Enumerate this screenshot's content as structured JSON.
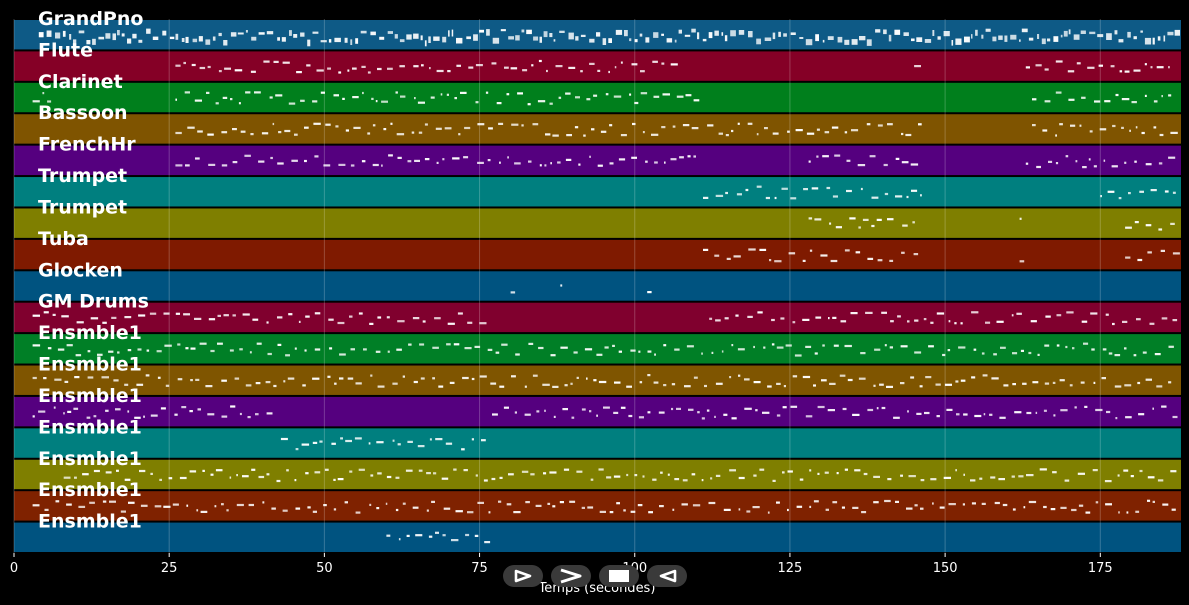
{
  "chart_data": {
    "type": "piano-roll",
    "xlabel": "Temps (secondes)",
    "xlim": [
      0,
      188
    ],
    "xticks": [
      0,
      25,
      50,
      75,
      100,
      125,
      150,
      175
    ],
    "grid": true,
    "tracks": [
      {
        "name": "GrandPno",
        "color": "#0e5a86",
        "active": [
          [
            4,
            187
          ]
        ]
      },
      {
        "name": "Flute",
        "color": "#850026",
        "active": [
          [
            26,
            79
          ],
          [
            80,
            106
          ],
          [
            145,
            146
          ],
          [
            163,
            187
          ]
        ]
      },
      {
        "name": "Clarinet",
        "color": "#007f1c",
        "active": [
          [
            3,
            6
          ],
          [
            26,
            110
          ],
          [
            164,
            187
          ]
        ]
      },
      {
        "name": "Bassoon",
        "color": "#7f5400",
        "active": [
          [
            26,
            146
          ],
          [
            164,
            187
          ]
        ]
      },
      {
        "name": "FrenchHr",
        "color": "#55007f",
        "active": [
          [
            26,
            110
          ],
          [
            128,
            146
          ],
          [
            163,
            187
          ]
        ]
      },
      {
        "name": "Trumpet",
        "color": "#007f7f",
        "active": [
          [
            111,
            146
          ],
          [
            175,
            187
          ]
        ]
      },
      {
        "name": "Trumpet",
        "color": "#7f7f00",
        "active": [
          [
            128,
            146
          ],
          [
            162,
            163
          ],
          [
            179,
            187
          ]
        ]
      },
      {
        "name": "Tuba",
        "color": "#7f1a00",
        "active": [
          [
            111,
            146
          ],
          [
            162,
            163
          ],
          [
            179,
            187
          ]
        ]
      },
      {
        "name": "Glocken",
        "color": "#005380",
        "active": [
          [
            80,
            81
          ],
          [
            88,
            89
          ],
          [
            102,
            103
          ]
        ]
      },
      {
        "name": "GM Drums",
        "color": "#80002e",
        "active": [
          [
            3,
            75
          ],
          [
            112,
            187
          ]
        ]
      },
      {
        "name": "Ensmble1",
        "color": "#007f26",
        "active": [
          [
            3,
            187
          ]
        ]
      },
      {
        "name": "Ensmble1",
        "color": "#7f5500",
        "active": [
          [
            3,
            187
          ]
        ]
      },
      {
        "name": "Ensmble1",
        "color": "#55007f",
        "active": [
          [
            3,
            42
          ],
          [
            77,
            187
          ]
        ]
      },
      {
        "name": "Ensmble1",
        "color": "#007f7f",
        "active": [
          [
            43,
            76
          ]
        ]
      },
      {
        "name": "Ensmble1",
        "color": "#7f7f00",
        "active": [
          [
            8,
            187
          ]
        ]
      },
      {
        "name": "Ensmble1",
        "color": "#7f2200",
        "active": [
          [
            3,
            187
          ]
        ]
      },
      {
        "name": "Ensmble1",
        "color": "#005380",
        "active": [
          [
            60,
            77
          ]
        ]
      }
    ]
  },
  "controls": {
    "play_icon": "play-icon",
    "forward_icon": "chevron-right-icon",
    "stop_icon": "stop-icon",
    "back_icon": "rewind-icon"
  }
}
